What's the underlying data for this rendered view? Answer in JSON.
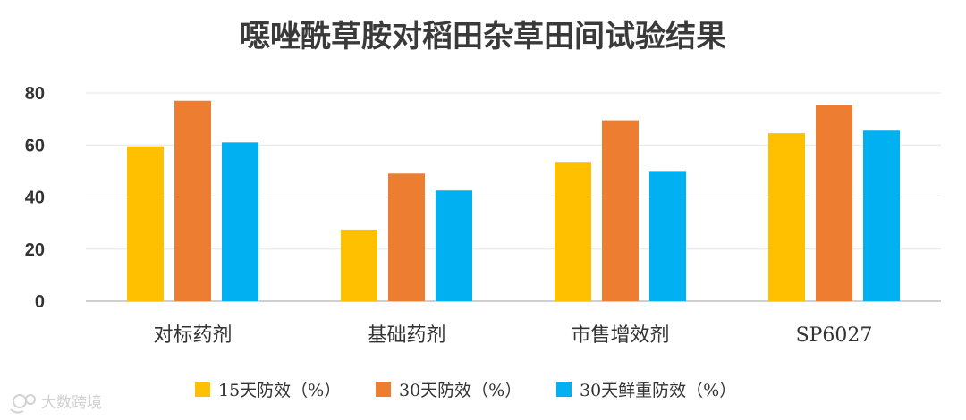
{
  "chart_data": {
    "type": "bar",
    "title": "噁唑酰草胺对稻田杂草田间试验结果",
    "categories": [
      "对标药剂",
      "基础药剂",
      "市售增效剂",
      "SP6027"
    ],
    "series": [
      {
        "name": "15天防效（%）",
        "color": "#FFC000",
        "values": [
          59.5,
          27.5,
          53.5,
          64.5
        ]
      },
      {
        "name": "30天防效（%）",
        "color": "#ED7D31",
        "values": [
          77,
          49,
          69.5,
          75.5
        ]
      },
      {
        "name": "30天鲜重防效（%）",
        "color": "#00B0F0",
        "values": [
          61,
          42.5,
          50,
          65.5
        ]
      }
    ],
    "ylim": [
      0,
      80
    ],
    "yticks": [
      0,
      20,
      40,
      60,
      80
    ],
    "grid": true,
    "legend_position": "bottom"
  },
  "watermark": {
    "text": "大数跨境",
    "icon": "logo-mark-icon"
  }
}
